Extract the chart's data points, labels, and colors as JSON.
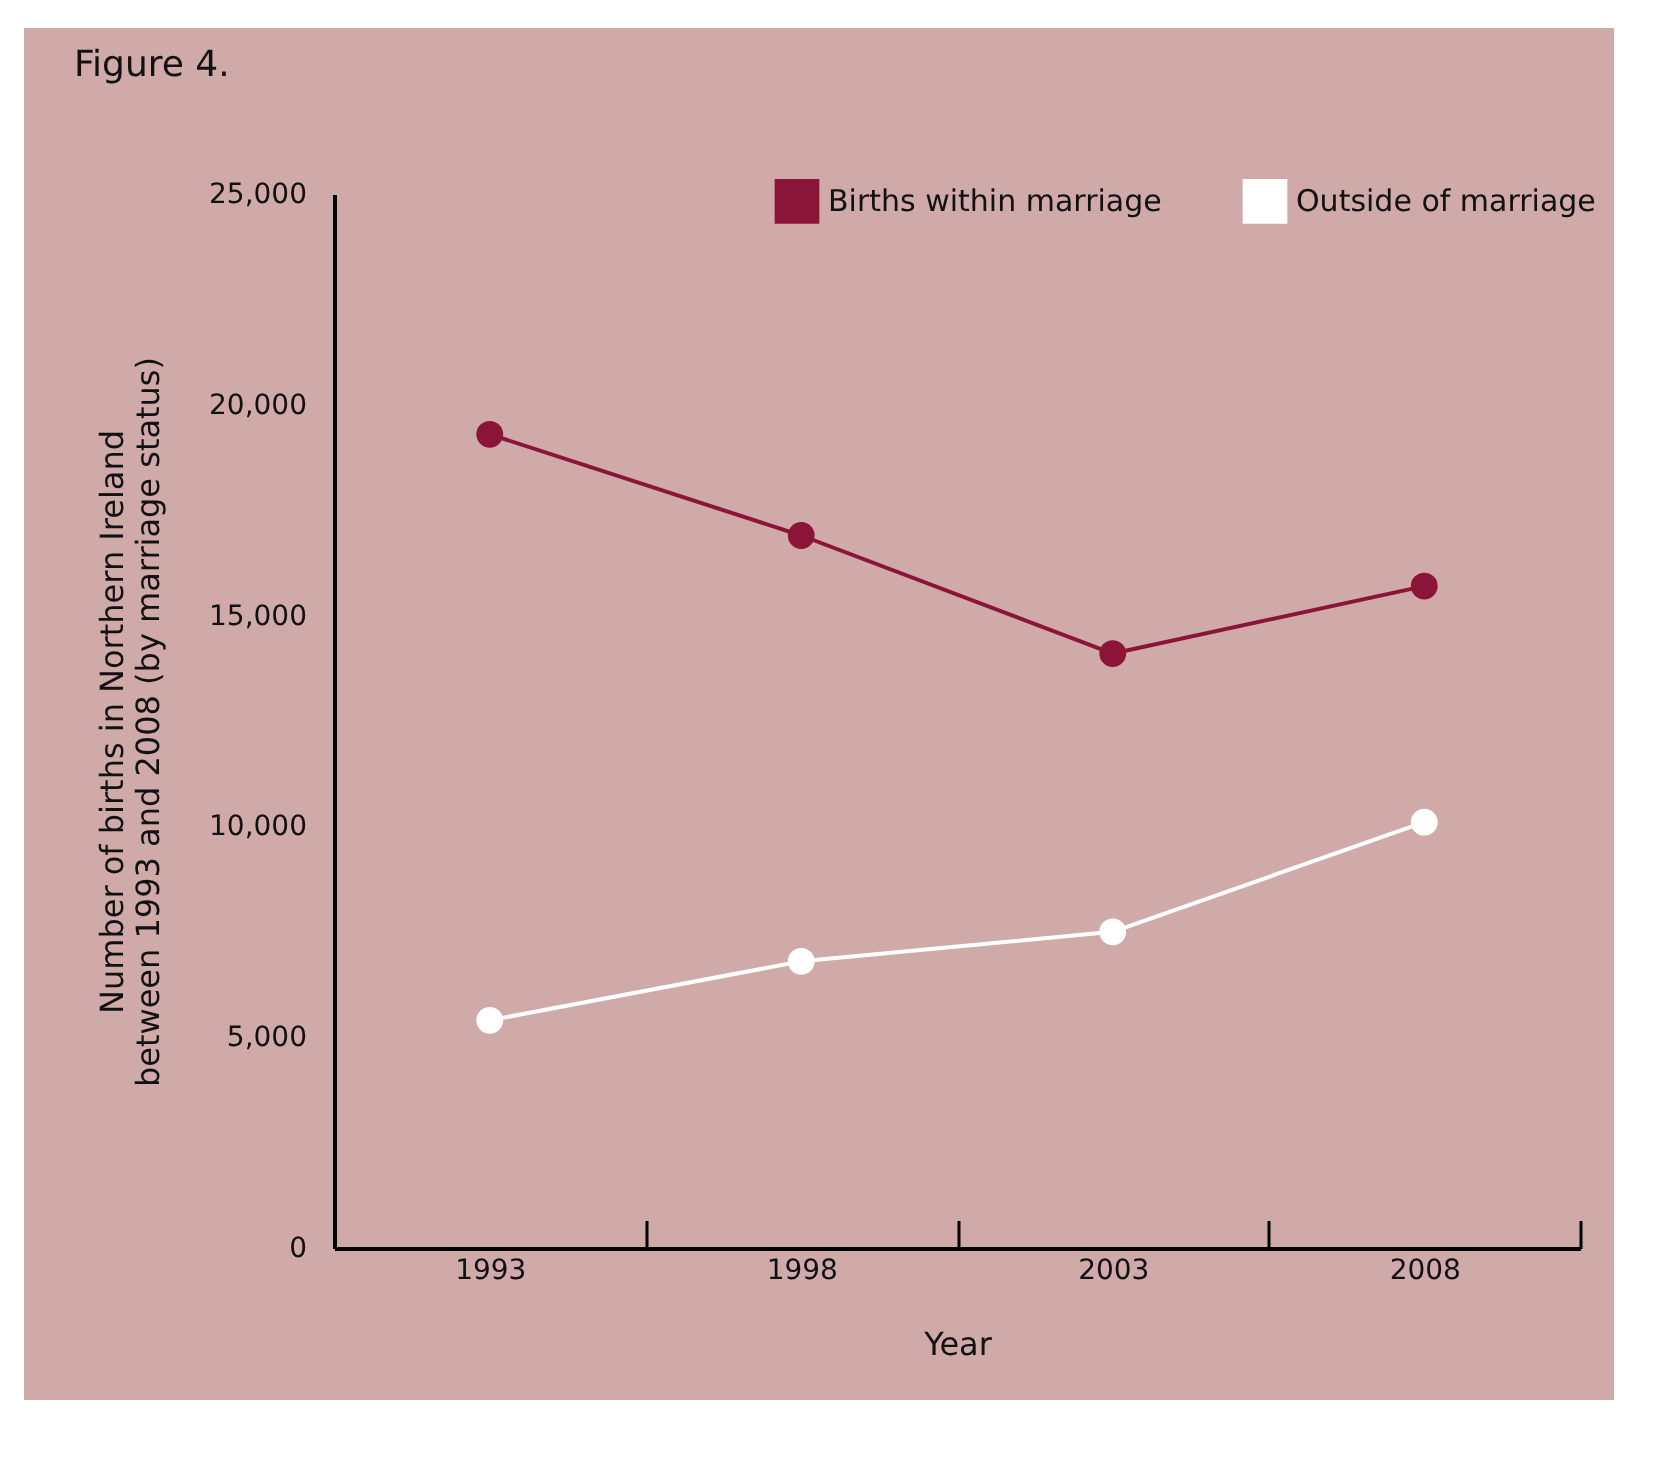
{
  "chart_data": {
    "type": "line",
    "title": "Figure 4.",
    "xlabel": "Year",
    "ylabel": "Number of births in Northern Ireland between 1993 and 2008 (by marriage status)",
    "categories": [
      "1993",
      "1998",
      "2003",
      "2008"
    ],
    "series": [
      {
        "name": "Births within marriage",
        "color": "#8b1538",
        "values": [
          19300,
          16900,
          14100,
          15700
        ]
      },
      {
        "name": "Outside of marriage",
        "color": "#ffffff",
        "values": [
          5400,
          6800,
          7500,
          10100
        ]
      }
    ],
    "ylim": [
      0,
      25000
    ],
    "yticks": [
      {
        "value": 0,
        "label": "0"
      },
      {
        "value": 5000,
        "label": "5,000"
      },
      {
        "value": 10000,
        "label": "10,000"
      },
      {
        "value": 15000,
        "label": "15,000"
      },
      {
        "value": 20000,
        "label": "20,000"
      },
      {
        "value": 25000,
        "label": "25,000"
      }
    ],
    "legend": "top right",
    "marker": "circle",
    "grid": false
  }
}
